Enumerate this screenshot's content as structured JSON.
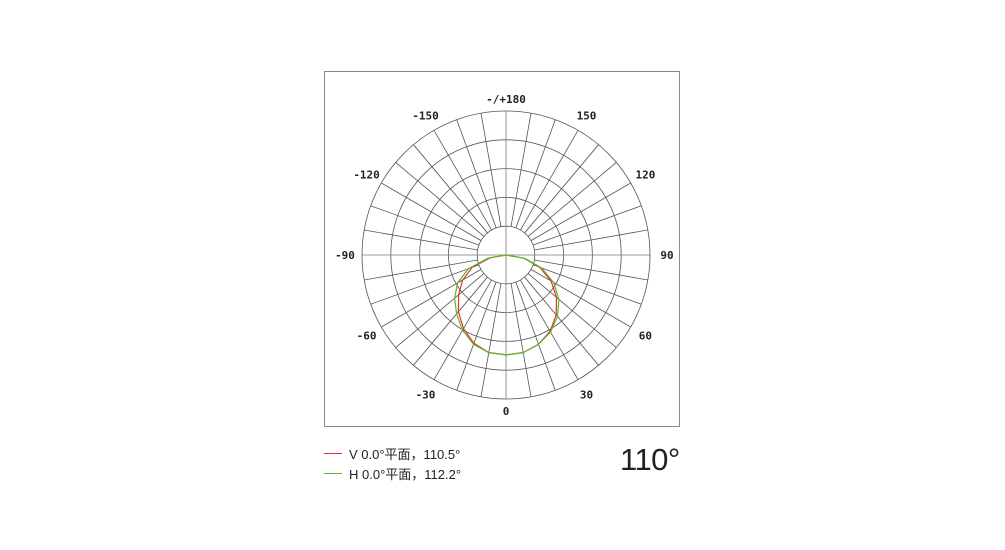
{
  "chart_data": {
    "type": "polar",
    "angle_labels": [
      "0",
      "30",
      "60",
      "90",
      "120",
      "150",
      "-/+180",
      "-150",
      "-120",
      "-90",
      "-60",
      "-30"
    ],
    "angle_ticks": [
      0,
      30,
      60,
      90,
      120,
      150,
      180,
      -150,
      -120,
      -90,
      -60,
      -30
    ],
    "spoke_step_deg": 10,
    "rings": [
      1,
      2,
      3,
      4,
      5
    ],
    "rlim": [
      0,
      5
    ],
    "grid": true,
    "angles": [
      -90,
      -80,
      -70,
      -60,
      -50,
      -40,
      -30,
      -20,
      -10,
      0,
      10,
      20,
      30,
      40,
      50,
      60,
      70,
      80,
      90
    ],
    "series": [
      {
        "name": "V 0.0°平面，110.5°",
        "color": "#e8312c",
        "values": [
          0,
          0.56,
          1.25,
          1.74,
          2.15,
          2.57,
          2.95,
          3.26,
          3.44,
          3.47,
          3.44,
          3.3,
          3.06,
          2.71,
          2.29,
          1.81,
          1.25,
          0.63,
          0
        ]
      },
      {
        "name": "H 0.0°平面，112.2°",
        "color": "#5cb82a",
        "values": [
          0,
          0.63,
          1.39,
          1.94,
          2.33,
          2.67,
          3.02,
          3.3,
          3.44,
          3.47,
          3.44,
          3.3,
          3.09,
          2.78,
          2.4,
          1.91,
          1.32,
          0.66,
          0
        ]
      }
    ],
    "legend": "bottom-left"
  },
  "legend": {
    "v_label": "V 0.0°平面，110.5°",
    "h_label": "H 0.0°平面，112.2°"
  },
  "beam_angle": "110°"
}
